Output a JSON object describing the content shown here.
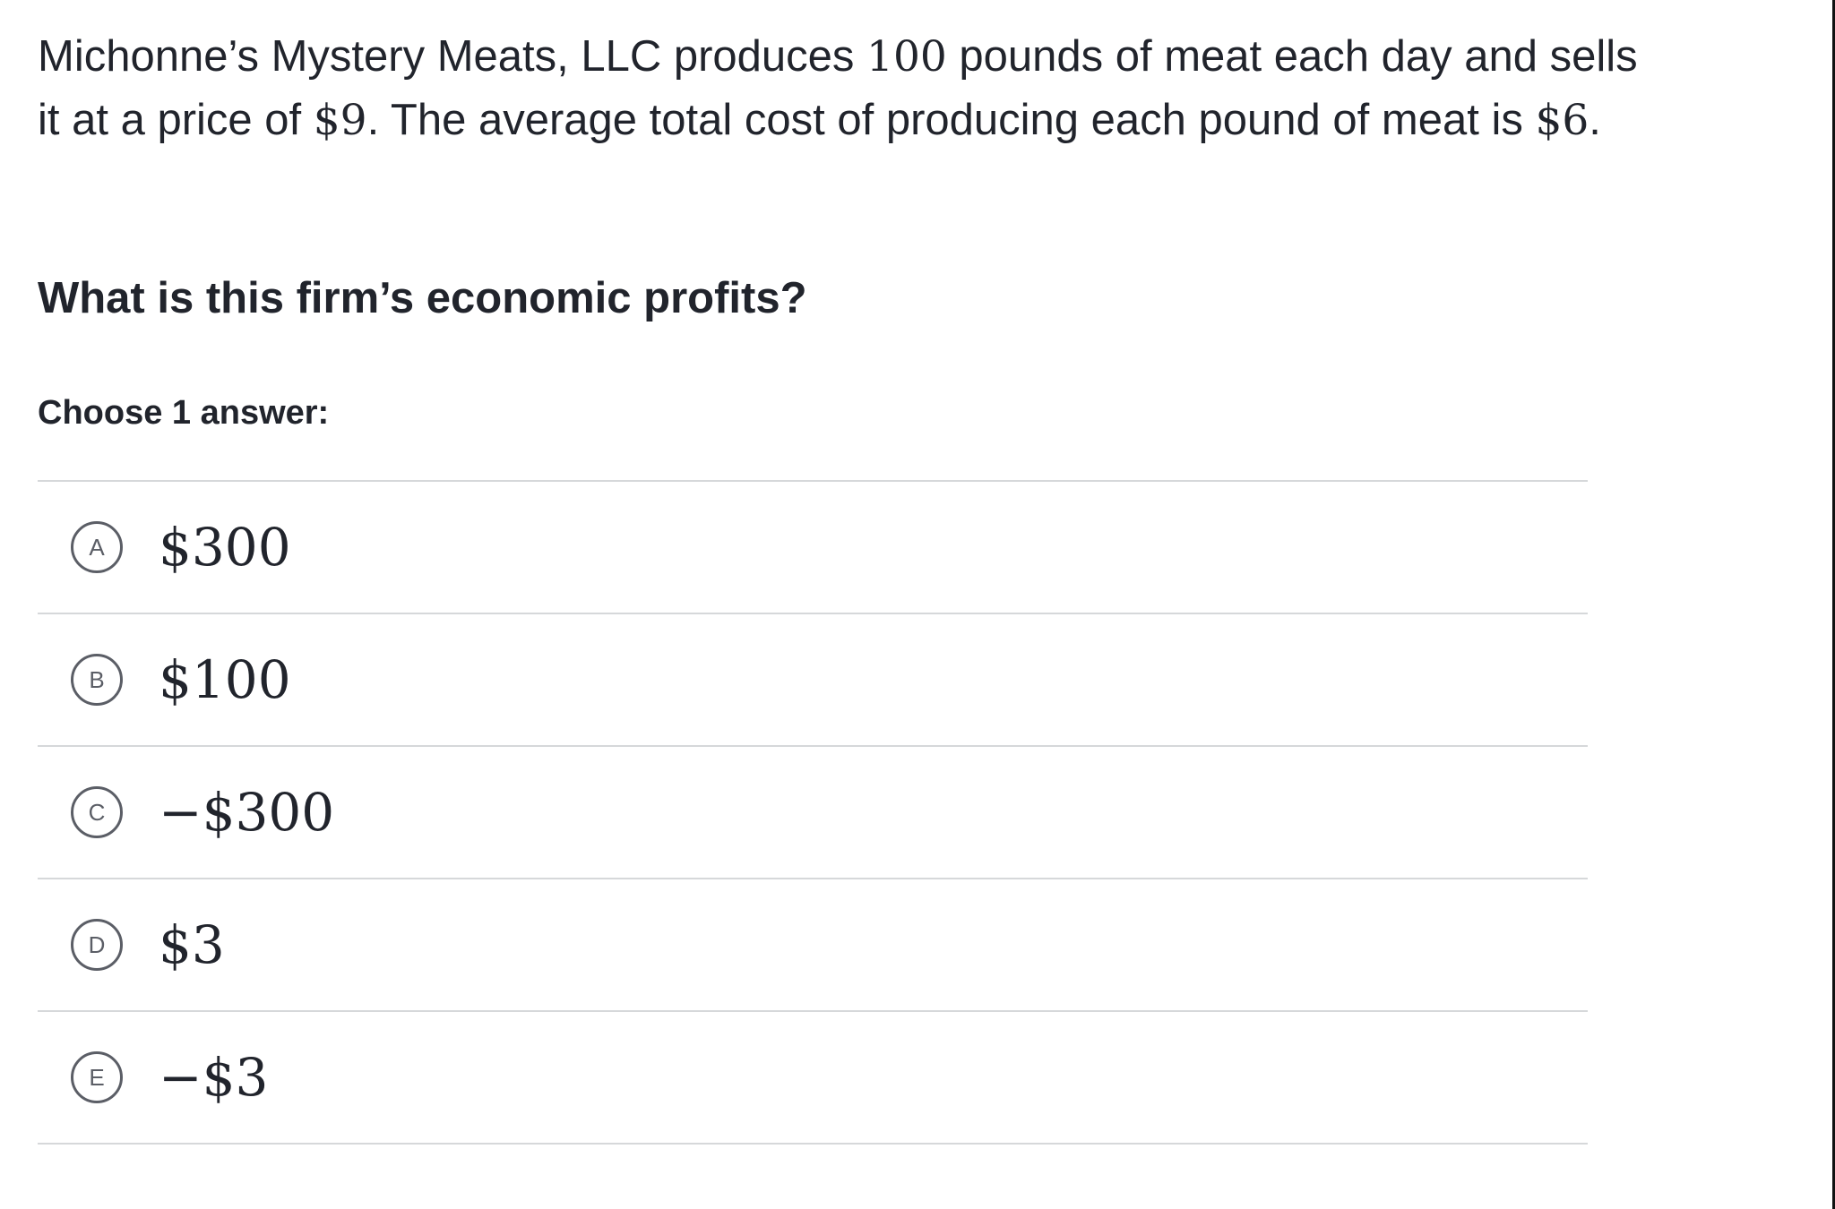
{
  "problem": {
    "text_1": "Michonne’s Mystery Meats, LLC produces ",
    "pounds": "100",
    "text_2": " pounds of meat each day and sells it at a price of ",
    "price": "$9",
    "text_3": ". The average total cost of producing each pound of meat is ",
    "atc": "$6",
    "text_4": "."
  },
  "question": "What is this firm’s economic profits?",
  "instruction": "Choose 1 answer:",
  "choices": [
    {
      "letter": "A",
      "value": "$300"
    },
    {
      "letter": "B",
      "value": "$100"
    },
    {
      "letter": "C",
      "value": "−$300"
    },
    {
      "letter": "D",
      "value": "$3"
    },
    {
      "letter": "E",
      "value": "−$3"
    }
  ]
}
